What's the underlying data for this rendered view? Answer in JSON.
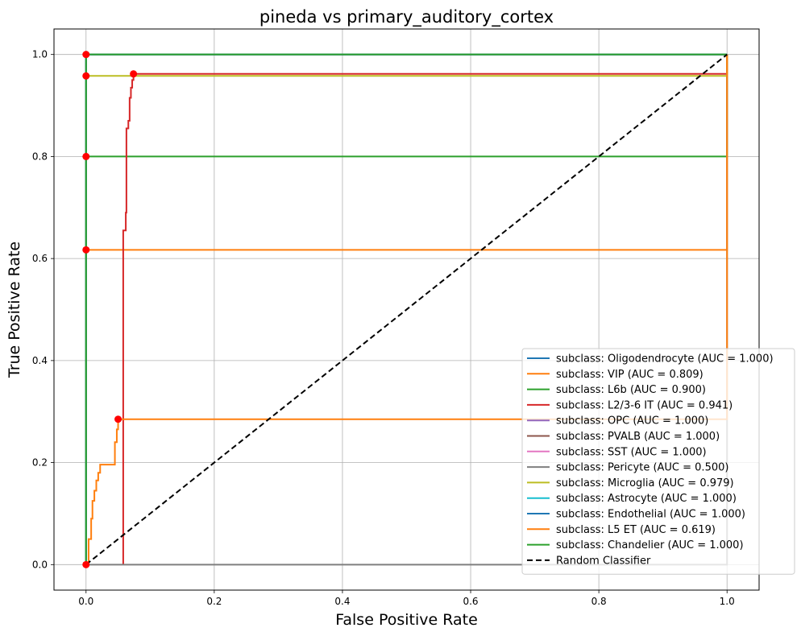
{
  "chart_data": {
    "type": "line",
    "title": "pineda vs primary_auditory_cortex",
    "xlabel": "False Positive Rate",
    "ylabel": "True Positive Rate",
    "xlim": [
      -0.05,
      1.05
    ],
    "ylim": [
      -0.05,
      1.05
    ],
    "xticks": [
      "0.0",
      "0.2",
      "0.4",
      "0.6",
      "0.8",
      "1.0"
    ],
    "yticks": [
      "0.0",
      "0.2",
      "0.4",
      "0.6",
      "0.8",
      "1.0"
    ],
    "grid": true,
    "legend_position": "lower-right",
    "series": [
      {
        "name": "subclass: Oligodendrocyte (AUC = 1.000)",
        "color": "#1f77b4",
        "points": [
          [
            0,
            0
          ],
          [
            0,
            1
          ],
          [
            1,
            1
          ]
        ]
      },
      {
        "name": "subclass: VIP (AUC = 0.809)",
        "color": "#ff7f0e",
        "points": [
          [
            0,
            0
          ],
          [
            0,
            0.617
          ],
          [
            1,
            0.617
          ],
          [
            1,
            1
          ]
        ]
      },
      {
        "name": "subclass: L6b (AUC = 0.900)",
        "color": "#2ca02c",
        "points": [
          [
            0,
            0
          ],
          [
            0,
            0.8
          ],
          [
            1,
            0.8
          ],
          [
            1,
            1
          ]
        ]
      },
      {
        "name": "subclass: L2/3-6 IT (AUC = 0.941)",
        "color": "#d62728",
        "points": [
          [
            0.058,
            0
          ],
          [
            0.058,
            0.655
          ],
          [
            0.062,
            0.655
          ],
          [
            0.062,
            0.69
          ],
          [
            0.063,
            0.69
          ],
          [
            0.063,
            0.855
          ],
          [
            0.066,
            0.855
          ],
          [
            0.066,
            0.87
          ],
          [
            0.068,
            0.87
          ],
          [
            0.068,
            0.915
          ],
          [
            0.07,
            0.915
          ],
          [
            0.07,
            0.935
          ],
          [
            0.072,
            0.935
          ],
          [
            0.072,
            0.95
          ],
          [
            0.074,
            0.95
          ],
          [
            0.074,
            0.962
          ],
          [
            1,
            0.962
          ],
          [
            1,
            1
          ]
        ]
      },
      {
        "name": "subclass: OPC (AUC = 1.000)",
        "color": "#9467bd",
        "points": [
          [
            0,
            0
          ],
          [
            0,
            1
          ],
          [
            1,
            1
          ]
        ]
      },
      {
        "name": "subclass: PVALB (AUC = 1.000)",
        "color": "#8c564b",
        "points": [
          [
            0,
            0
          ],
          [
            0,
            1
          ],
          [
            1,
            1
          ]
        ]
      },
      {
        "name": "subclass: SST (AUC = 1.000)",
        "color": "#e377c2",
        "points": [
          [
            0,
            0
          ],
          [
            0,
            1
          ],
          [
            1,
            1
          ]
        ]
      },
      {
        "name": "subclass: Pericyte (AUC = 0.500)",
        "color": "#7f7f7f",
        "points": [
          [
            0,
            0
          ],
          [
            1,
            0
          ],
          [
            1,
            1
          ]
        ]
      },
      {
        "name": "subclass: Microglia (AUC = 0.979)",
        "color": "#bcbd22",
        "points": [
          [
            0,
            0
          ],
          [
            0,
            0.958
          ],
          [
            1,
            0.958
          ],
          [
            1,
            1
          ]
        ]
      },
      {
        "name": "subclass: Astrocyte (AUC = 1.000)",
        "color": "#17becf",
        "points": [
          [
            0,
            0
          ],
          [
            0,
            1
          ],
          [
            1,
            1
          ]
        ]
      },
      {
        "name": "subclass: Endothelial (AUC = 1.000)",
        "color": "#1f77b4",
        "points": [
          [
            0,
            0
          ],
          [
            0,
            1
          ],
          [
            1,
            1
          ]
        ]
      },
      {
        "name": "subclass: L5 ET (AUC = 0.619)",
        "color": "#ff7f0e",
        "points": [
          [
            0,
            0
          ],
          [
            0.004,
            0
          ],
          [
            0.004,
            0.05
          ],
          [
            0.008,
            0.05
          ],
          [
            0.008,
            0.09
          ],
          [
            0.01,
            0.09
          ],
          [
            0.01,
            0.125
          ],
          [
            0.013,
            0.125
          ],
          [
            0.013,
            0.145
          ],
          [
            0.016,
            0.145
          ],
          [
            0.016,
            0.165
          ],
          [
            0.019,
            0.165
          ],
          [
            0.019,
            0.18
          ],
          [
            0.022,
            0.18
          ],
          [
            0.022,
            0.196
          ],
          [
            0.045,
            0.196
          ],
          [
            0.045,
            0.24
          ],
          [
            0.048,
            0.24
          ],
          [
            0.048,
            0.265
          ],
          [
            0.05,
            0.265
          ],
          [
            0.05,
            0.285
          ],
          [
            1,
            0.285
          ],
          [
            1,
            1
          ]
        ]
      },
      {
        "name": "subclass: Chandelier (AUC = 1.000)",
        "color": "#2ca02c",
        "points": [
          [
            0,
            0
          ],
          [
            0,
            1
          ],
          [
            1,
            1
          ]
        ]
      },
      {
        "name": "Random Classifier",
        "color": "#000000",
        "dashed": true,
        "points": [
          [
            0,
            0
          ],
          [
            1,
            1
          ]
        ]
      }
    ],
    "markers": {
      "color": "#ff0000",
      "points": [
        [
          0,
          1
        ],
        [
          0,
          0.958
        ],
        [
          0,
          0.8
        ],
        [
          0,
          0.617
        ],
        [
          0.074,
          0.962
        ],
        [
          0.05,
          0.285
        ],
        [
          0,
          0
        ]
      ]
    }
  }
}
